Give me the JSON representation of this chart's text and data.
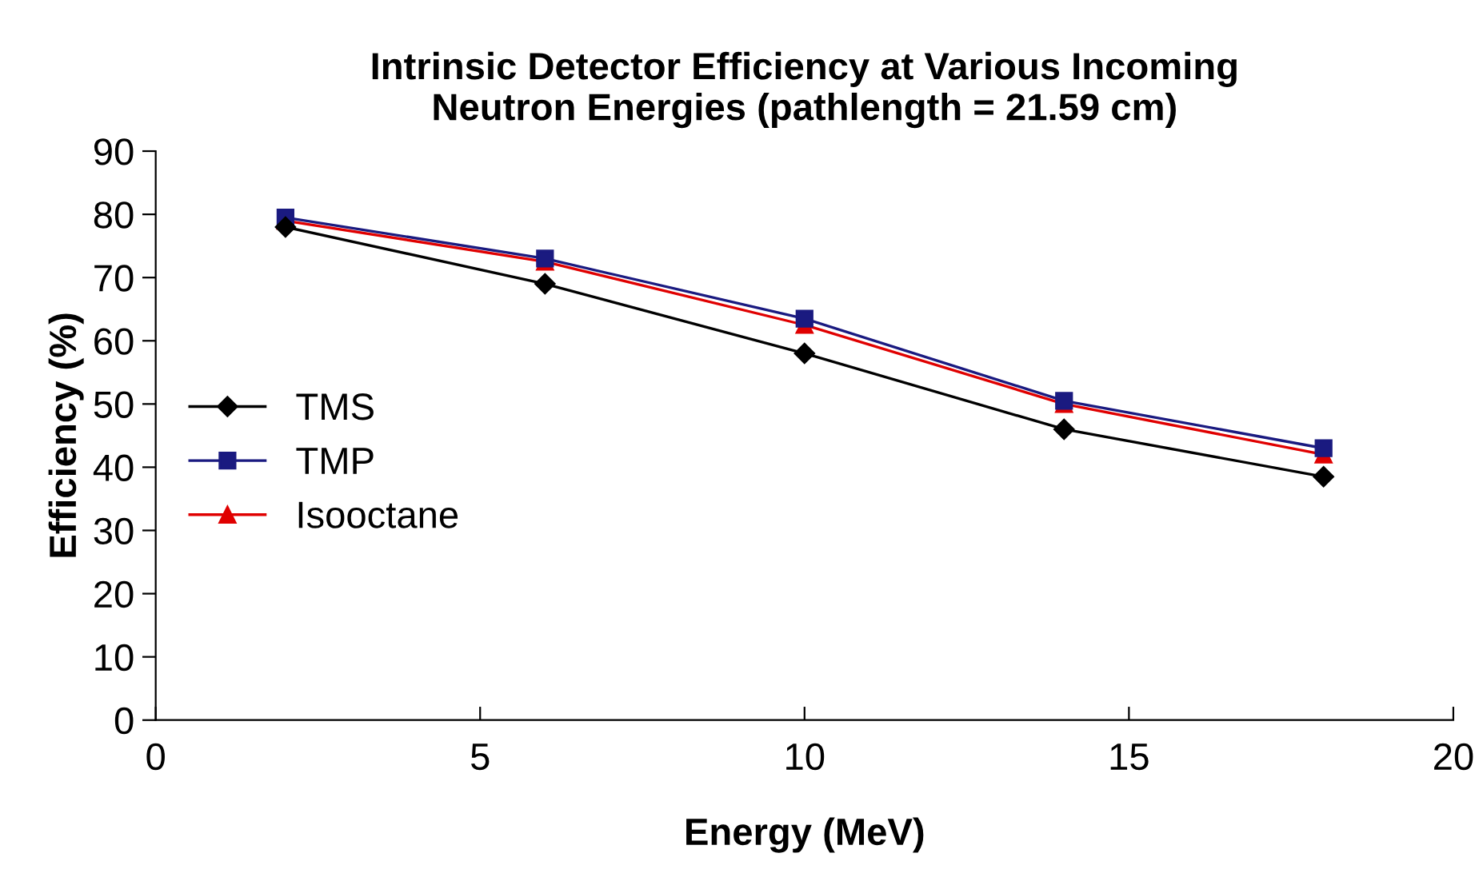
{
  "chart_data": {
    "type": "line",
    "title": "Intrinsic Detector Efficiency at Various Incoming\nNeutron Energies (pathlength = 21.59 cm)",
    "xlabel": "Energy (MeV)",
    "ylabel": "Efficiency (%)",
    "x": [
      2,
      6,
      10,
      14,
      18
    ],
    "series": [
      {
        "name": "TMS",
        "color": "#000000",
        "marker": "diamond",
        "values": [
          78,
          69,
          58,
          46,
          38.5
        ]
      },
      {
        "name": "TMP",
        "color": "#1a1a80",
        "marker": "square",
        "values": [
          79.5,
          73,
          63.5,
          50.5,
          43
        ]
      },
      {
        "name": "Isooctane",
        "color": "#e00000",
        "marker": "triangle",
        "values": [
          79,
          72.5,
          62.5,
          50,
          42
        ]
      }
    ],
    "xlim": [
      0,
      20
    ],
    "xticks": [
      0,
      5,
      10,
      15,
      20
    ],
    "ylim": [
      0,
      90
    ],
    "yticks": [
      0,
      10,
      20,
      30,
      40,
      50,
      60,
      70,
      80,
      90
    ],
    "grid": false,
    "legend": "left"
  }
}
